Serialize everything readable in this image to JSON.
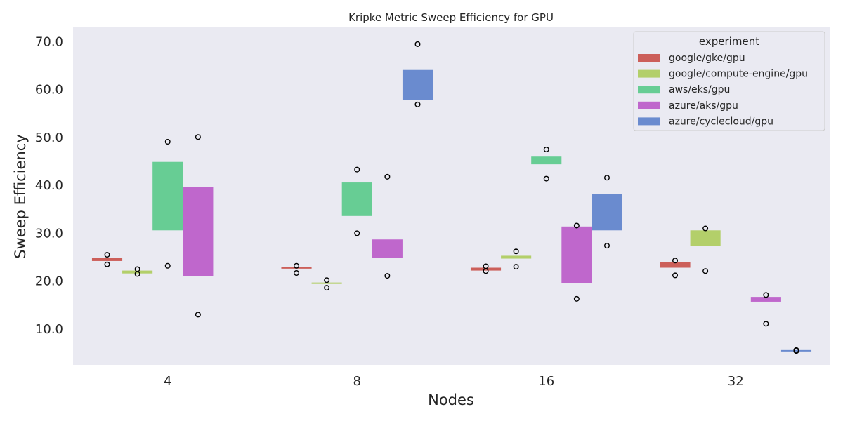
{
  "chart_data": {
    "type": "box",
    "title": "Kripke Metric Sweep Efficiency for GPU",
    "xlabel": "Nodes",
    "ylabel": "Sweep Efficiency",
    "categories": [
      "4",
      "8",
      "16",
      "32"
    ],
    "ylim": [
      2.5,
      73
    ],
    "yticks": [
      "10.0",
      "20.0",
      "30.0",
      "40.0",
      "50.0",
      "60.0",
      "70.0"
    ],
    "grid": false,
    "legend": {
      "title": "experiment",
      "position": "top-right"
    },
    "series": [
      {
        "name": "google/gke/gpu",
        "color": "#cc5f5a",
        "boxes": [
          {
            "category": "4",
            "q1": 24.2,
            "q3": 24.9,
            "fliers": [
              25.5,
              23.5
            ]
          },
          {
            "category": "8",
            "q1": 22.6,
            "q3": 22.9,
            "fliers": [
              23.2,
              21.7
            ]
          },
          {
            "category": "16",
            "q1": 22.2,
            "q3": 22.8,
            "fliers": [
              23.1,
              22.1
            ]
          },
          {
            "category": "32",
            "q1": 22.8,
            "q3": 24.0,
            "fliers": [
              24.3,
              21.2
            ]
          }
        ]
      },
      {
        "name": "google/compute-engine/gpu",
        "color": "#b3cf6a",
        "boxes": [
          {
            "category": "4",
            "q1": 21.6,
            "q3": 22.2,
            "fliers": [
              22.5,
              21.5
            ]
          },
          {
            "category": "8",
            "q1": 19.4,
            "q3": 19.7,
            "fliers": [
              20.2,
              18.6
            ]
          },
          {
            "category": "16",
            "q1": 24.7,
            "q3": 25.3,
            "fliers": [
              26.2,
              23.0
            ]
          },
          {
            "category": "32",
            "q1": 27.4,
            "q3": 30.6,
            "fliers": [
              31.0,
              22.1
            ]
          }
        ]
      },
      {
        "name": "aws/eks/gpu",
        "color": "#67cd94",
        "boxes": [
          {
            "category": "4",
            "q1": 30.6,
            "q3": 44.9,
            "fliers": [
              49.1,
              23.2
            ]
          },
          {
            "category": "8",
            "q1": 33.6,
            "q3": 40.6,
            "fliers": [
              43.3,
              30.0
            ]
          },
          {
            "category": "16",
            "q1": 44.4,
            "q3": 46.0,
            "fliers": [
              47.5,
              41.4
            ]
          }
        ]
      },
      {
        "name": "azure/aks/gpu",
        "color": "#bf67cc",
        "boxes": [
          {
            "category": "4",
            "q1": 21.1,
            "q3": 39.6,
            "fliers": [
              50.1,
              13.0
            ]
          },
          {
            "category": "8",
            "q1": 24.9,
            "q3": 28.7,
            "fliers": [
              41.8,
              21.1
            ]
          },
          {
            "category": "16",
            "q1": 19.6,
            "q3": 31.4,
            "fliers": [
              31.6,
              16.3
            ]
          },
          {
            "category": "32",
            "q1": 15.7,
            "q3": 16.7,
            "fliers": [
              17.1,
              11.1
            ]
          }
        ]
      },
      {
        "name": "azure/cyclecloud/gpu",
        "color": "#6a8bcf",
        "boxes": [
          {
            "category": "8",
            "q1": 57.8,
            "q3": 64.1,
            "fliers": [
              69.5,
              56.9
            ]
          },
          {
            "category": "16",
            "q1": 30.6,
            "q3": 38.2,
            "fliers": [
              41.6,
              27.4
            ]
          },
          {
            "category": "32",
            "q1": 5.4,
            "q3": 5.6,
            "fliers": [
              5.6,
              5.4
            ]
          }
        ]
      }
    ]
  }
}
